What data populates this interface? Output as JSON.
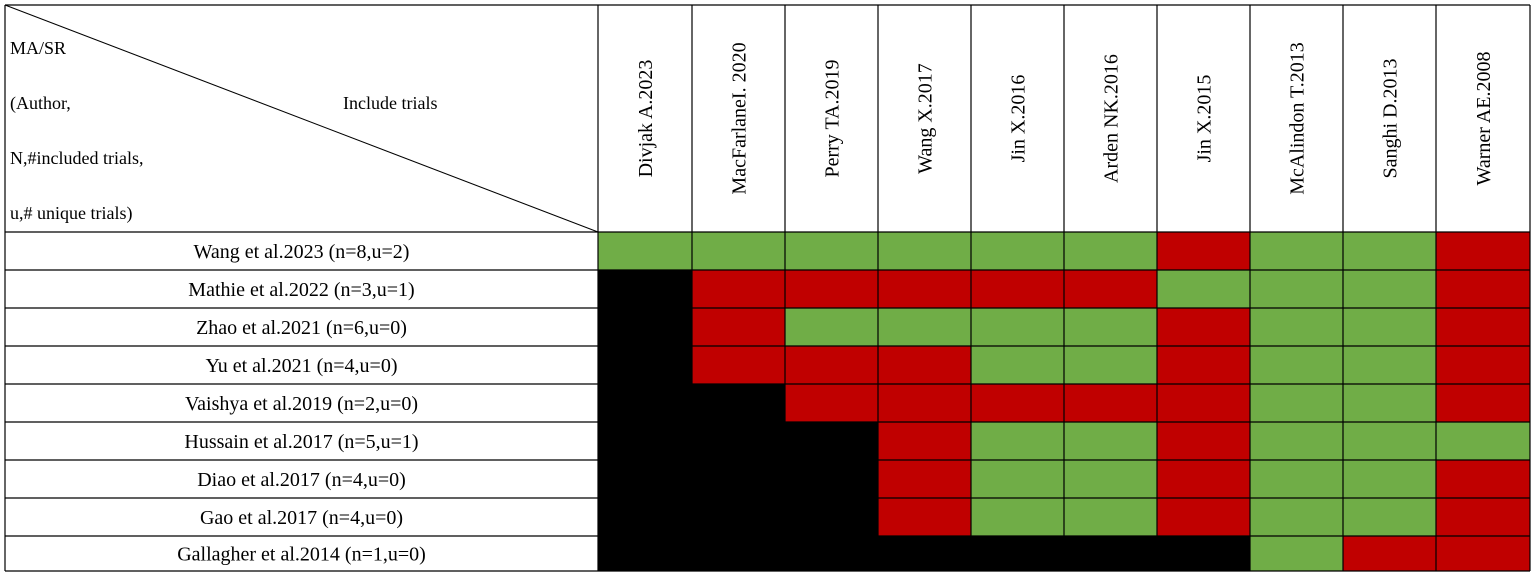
{
  "header": {
    "corner_line1": "MA/SR",
    "corner_line2": "(Author,",
    "corner_line3": "N,#included trials,",
    "corner_line4": "u,# unique trials)",
    "include_trials": "Include trials"
  },
  "columns": [
    "Divjak  A.2023",
    "MacFarlaneI. 2020",
    "Perry TA.2019",
    "Wang X.2017",
    "Jin X.2016",
    "Arden NK.2016",
    "Jin X.2015",
    "McAlindon T.2013",
    "Sanghi D.2013",
    "Warner AE.2008"
  ],
  "rows": [
    {
      "label": "Wang et al.2023 (n=8,u=2)",
      "cells": [
        "G",
        "G",
        "G",
        "G",
        "G",
        "G",
        "R",
        "G",
        "G",
        "R"
      ]
    },
    {
      "label": "Mathie et al.2022 (n=3,u=1)",
      "cells": [
        "B",
        "R",
        "R",
        "R",
        "R",
        "R",
        "G",
        "G",
        "G",
        "R"
      ]
    },
    {
      "label": "Zhao et al.2021 (n=6,u=0)",
      "cells": [
        "B",
        "R",
        "G",
        "G",
        "G",
        "G",
        "R",
        "G",
        "G",
        "R"
      ]
    },
    {
      "label": "Yu et al.2021 (n=4,u=0)",
      "cells": [
        "B",
        "R",
        "R",
        "R",
        "G",
        "G",
        "R",
        "G",
        "G",
        "R"
      ]
    },
    {
      "label": "Vaishya et al.2019 (n=2,u=0)",
      "cells": [
        "B",
        "B",
        "R",
        "R",
        "R",
        "R",
        "R",
        "G",
        "G",
        "R"
      ]
    },
    {
      "label": "Hussain et al.2017 (n=5,u=1)",
      "cells": [
        "B",
        "B",
        "B",
        "R",
        "G",
        "G",
        "R",
        "G",
        "G",
        "G"
      ]
    },
    {
      "label": "Diao et al.2017 (n=4,u=0)",
      "cells": [
        "B",
        "B",
        "B",
        "R",
        "G",
        "G",
        "R",
        "G",
        "G",
        "R"
      ]
    },
    {
      "label": "Gao et al.2017 (n=4,u=0)",
      "cells": [
        "B",
        "B",
        "B",
        "R",
        "G",
        "G",
        "R",
        "G",
        "G",
        "R"
      ]
    },
    {
      "label": "Gallagher et al.2014 (n=1,u=0)",
      "cells": [
        "B",
        "B",
        "B",
        "B",
        "B",
        "B",
        "B",
        "G",
        "R",
        "R"
      ]
    }
  ],
  "colors": {
    "G": "#70ad47",
    "R": "#c00000",
    "B": "#000000",
    "grid": "#000000"
  }
}
